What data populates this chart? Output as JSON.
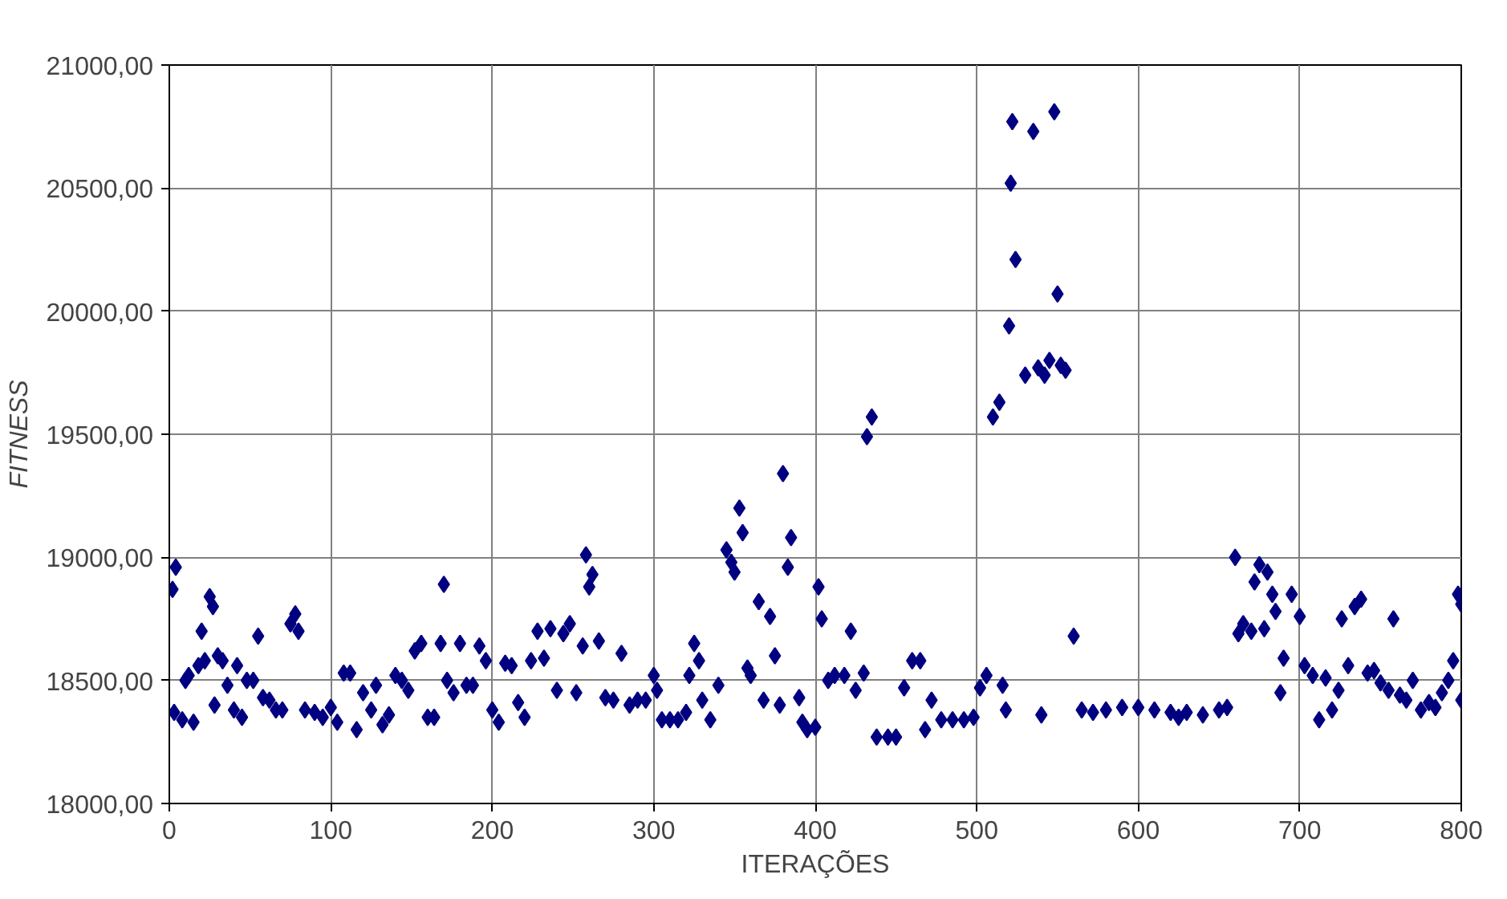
{
  "chart_data": {
    "type": "scatter",
    "xlabel": "ITERAÇÕES",
    "ylabel": "FITNESS",
    "marker": "diamond",
    "grid": true,
    "xlim": [
      0,
      800
    ],
    "xticks": [
      0,
      100,
      200,
      300,
      400,
      500,
      600,
      700,
      800
    ],
    "ylim": [
      18000,
      21000
    ],
    "yticks": [
      {
        "value": 18000,
        "label": "18000,00"
      },
      {
        "value": 18500,
        "label": "18500,00"
      },
      {
        "value": 19000,
        "label": "19000,00"
      },
      {
        "value": 19500,
        "label": "19500,00"
      },
      {
        "value": 20000,
        "label": "20000,00"
      },
      {
        "value": 20500,
        "label": "20500,00"
      },
      {
        "value": 21000,
        "label": "21000,00"
      }
    ],
    "series": [
      {
        "color": "#000080",
        "x": [
          2,
          4,
          3,
          8,
          10,
          12,
          15,
          18,
          20,
          22,
          25,
          27,
          28,
          30,
          33,
          36,
          40,
          42,
          45,
          48,
          52,
          55,
          58,
          62,
          66,
          70,
          75,
          78,
          80,
          84,
          90,
          95,
          100,
          104,
          108,
          112,
          116,
          120,
          125,
          128,
          132,
          136,
          140,
          144,
          148,
          152,
          156,
          160,
          164,
          168,
          170,
          172,
          176,
          180,
          184,
          188,
          192,
          196,
          200,
          204,
          208,
          212,
          216,
          220,
          224,
          228,
          232,
          236,
          240,
          244,
          248,
          252,
          256,
          258,
          260,
          262,
          266,
          270,
          275,
          280,
          285,
          290,
          295,
          300,
          302,
          305,
          310,
          315,
          320,
          322,
          325,
          328,
          330,
          335,
          340,
          345,
          348,
          350,
          353,
          355,
          358,
          360,
          365,
          368,
          372,
          375,
          378,
          380,
          383,
          385,
          390,
          392,
          395,
          400,
          402,
          404,
          408,
          412,
          418,
          422,
          425,
          430,
          432,
          435,
          438,
          445,
          450,
          455,
          460,
          465,
          468,
          472,
          478,
          485,
          492,
          498,
          502,
          506,
          510,
          514,
          516,
          518,
          520,
          521,
          522,
          524,
          530,
          535,
          538,
          540,
          542,
          545,
          548,
          550,
          552,
          555,
          560,
          565,
          572,
          580,
          590,
          600,
          610,
          620,
          625,
          630,
          640,
          650,
          655,
          660,
          662,
          665,
          670,
          672,
          675,
          678,
          680,
          683,
          685,
          688,
          690,
          695,
          700,
          703,
          708,
          712,
          716,
          720,
          724,
          726,
          730,
          734,
          738,
          742,
          746,
          750,
          755,
          758,
          762,
          766,
          770,
          775,
          780,
          784,
          788,
          792,
          795,
          798,
          800,
          800
        ],
        "values": [
          18870,
          18960,
          18370,
          18340,
          18500,
          18520,
          18330,
          18560,
          18700,
          18580,
          18840,
          18800,
          18400,
          18600,
          18580,
          18480,
          18380,
          18560,
          18350,
          18500,
          18500,
          18680,
          18430,
          18420,
          18380,
          18380,
          18730,
          18770,
          18700,
          18380,
          18370,
          18350,
          18390,
          18330,
          18530,
          18530,
          18300,
          18450,
          18380,
          18480,
          18320,
          18360,
          18520,
          18500,
          18460,
          18620,
          18650,
          18350,
          18350,
          18650,
          18890,
          18500,
          18450,
          18650,
          18480,
          18480,
          18640,
          18580,
          18380,
          18330,
          18570,
          18560,
          18410,
          18350,
          18580,
          18700,
          18590,
          18710,
          18460,
          18690,
          18730,
          18450,
          18640,
          19010,
          18880,
          18930,
          18660,
          18430,
          18420,
          18610,
          18400,
          18420,
          18420,
          18520,
          18460,
          18340,
          18340,
          18340,
          18370,
          18520,
          18650,
          18580,
          18420,
          18340,
          18480,
          19030,
          18980,
          18940,
          19200,
          19100,
          18550,
          18520,
          18820,
          18420,
          18760,
          18600,
          18400,
          19340,
          18960,
          19080,
          18430,
          18330,
          18300,
          18310,
          18880,
          18750,
          18500,
          18520,
          18520,
          18700,
          18460,
          18530,
          19490,
          19570,
          18270,
          18270,
          18270,
          18470,
          18580,
          18580,
          18300,
          18420,
          18340,
          18340,
          18340,
          18350,
          18470,
          18520,
          19570,
          19630,
          18480,
          18380,
          19940,
          20520,
          20770,
          20210,
          19740,
          20730,
          19770,
          18360,
          19740,
          19800,
          20810,
          20070,
          19780,
          19760,
          18680,
          18380,
          18370,
          18380,
          18390,
          18390,
          18380,
          18370,
          18350,
          18370,
          18360,
          18380,
          18390,
          19000,
          18690,
          18730,
          18700,
          18900,
          18970,
          18710,
          18940,
          18850,
          18780,
          18450,
          18590,
          18850,
          18760,
          18560,
          18520,
          18340,
          18510,
          18380,
          18460,
          18750,
          18560,
          18800,
          18830,
          18530,
          18540,
          18490,
          18460,
          18750,
          18440,
          18420,
          18500,
          18380,
          18410,
          18390,
          18450,
          18500,
          18580,
          18850,
          18810,
          18420
        ]
      }
    ]
  }
}
